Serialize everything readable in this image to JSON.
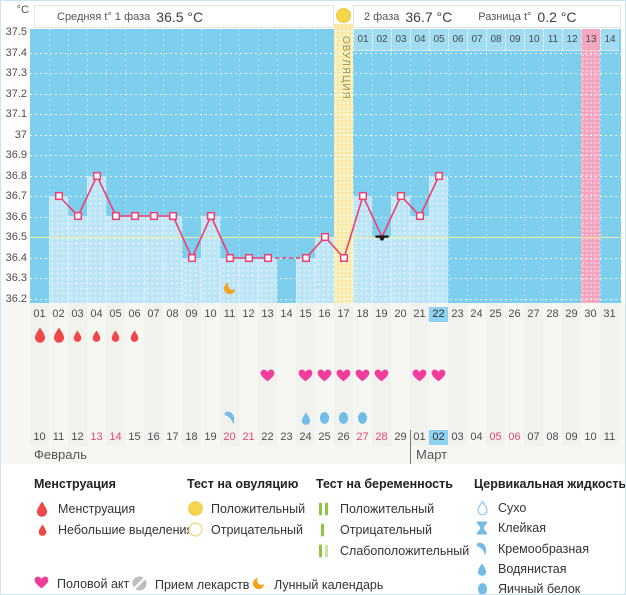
{
  "colors": {
    "chart_bg": "#7ecfee",
    "bar": "#bce6f6",
    "line_pink": "#ee3e72",
    "coverline": "#eeee9e",
    "ovulation_column": "#f8eaa6",
    "expected_period_column": "#f2a3bd",
    "today_highlight": "#8dd2f1",
    "menstruation_red": "#f04848",
    "intercourse_pink": "#f23c9b",
    "cervical_blue": "#72bce8",
    "test_green": "#8cc63e",
    "test_green_pale": "#cde3a4",
    "ovulation_yellow": "#f6d44c",
    "moon_orange": "#f6a21d",
    "pill_gray": "#bdbdbd",
    "weekend_red": "#e8486e"
  },
  "header": {
    "unit": "°C",
    "phase1_label": "Средняя t° 1 фаза",
    "phase1_value": "36.5 °C",
    "phase2_label": "2 фаза",
    "phase2_value": "36.7 °C",
    "diff_label": "Разница t°",
    "diff_value": "0.2 °C"
  },
  "chart_data": {
    "type": "line",
    "ylabel": "°C",
    "ylim": [
      36.2,
      37.5
    ],
    "ytick_labels": [
      "37.5",
      "37.4",
      "37.3",
      "37.2",
      "37.1",
      "37",
      "36.9",
      "36.8",
      "36.7",
      "36.6",
      "36.5",
      "36.4",
      "36.3",
      "36.2"
    ],
    "coverline": 36.5,
    "cycle_days": [
      "01",
      "02",
      "03",
      "04",
      "05",
      "06",
      "07",
      "08",
      "09",
      "10",
      "11",
      "12",
      "13",
      "14",
      "15",
      "16",
      "17",
      "18",
      "19",
      "20",
      "21",
      "22",
      "23",
      "24",
      "25",
      "26",
      "27",
      "28",
      "29",
      "30",
      "31"
    ],
    "temps": [
      null,
      36.7,
      36.6,
      36.8,
      36.6,
      36.6,
      36.6,
      36.6,
      36.4,
      36.6,
      36.4,
      36.4,
      36.4,
      null,
      36.4,
      36.5,
      36.4,
      36.7,
      36.5,
      36.7,
      36.6,
      36.8,
      null,
      null,
      null,
      null,
      null,
      null,
      null,
      null,
      null
    ],
    "missing_measurement_days": [
      1,
      14
    ],
    "ovulation_day": 17,
    "ovulation_column_label": "ОВУЛЯЦИЯ",
    "expected_period_day": 30,
    "current_cycle_day": 22,
    "phase2_days": [
      "01",
      "02",
      "03",
      "04",
      "05",
      "06",
      "07",
      "08",
      "09",
      "10",
      "11",
      "12",
      "13",
      "14"
    ],
    "phase2_expected_period_label": "13",
    "moon_day": 11,
    "dip_marker": {
      "day": 19,
      "temp": 36.5
    }
  },
  "events": {
    "menstruation_heavy_days": [
      1,
      2
    ],
    "menstruation_light_days": [
      3,
      4,
      5,
      6
    ],
    "intercourse_days": [
      13,
      15,
      16,
      17,
      18,
      19,
      21,
      22
    ],
    "cervical_fluid": [
      {
        "day": 11,
        "type": "creamy"
      },
      {
        "day": 15,
        "type": "watery"
      },
      {
        "day": 16,
        "type": "eggwhite"
      },
      {
        "day": 17,
        "type": "eggwhite"
      },
      {
        "day": 18,
        "type": "eggwhite"
      }
    ]
  },
  "calendar": {
    "dates": [
      {
        "label": "10"
      },
      {
        "label": "11"
      },
      {
        "label": "12"
      },
      {
        "label": "13",
        "red": true
      },
      {
        "label": "14",
        "red": true
      },
      {
        "label": "15"
      },
      {
        "label": "16"
      },
      {
        "label": "17"
      },
      {
        "label": "18"
      },
      {
        "label": "19"
      },
      {
        "label": "20",
        "red": true
      },
      {
        "label": "21",
        "red": true
      },
      {
        "label": "22"
      },
      {
        "label": "23"
      },
      {
        "label": "24"
      },
      {
        "label": "25"
      },
      {
        "label": "26"
      },
      {
        "label": "27",
        "red": true
      },
      {
        "label": "28",
        "red": true
      },
      {
        "label": "29"
      },
      {
        "label": "01"
      },
      {
        "label": "02",
        "today": true
      },
      {
        "label": "03"
      },
      {
        "label": "04"
      },
      {
        "label": "05",
        "red": true
      },
      {
        "label": "06",
        "red": true
      },
      {
        "label": "07"
      },
      {
        "label": "08"
      },
      {
        "label": "09"
      },
      {
        "label": "10"
      },
      {
        "label": "11"
      }
    ],
    "months": [
      {
        "label": "Февраль",
        "start_day": 1
      },
      {
        "label": "Март",
        "start_day": 21
      }
    ]
  },
  "legend": {
    "sections": [
      {
        "title": "Менструация",
        "items": [
          {
            "icon": "drop-large",
            "label": "Менструация"
          },
          {
            "icon": "drop-small",
            "label": "Небольшие выделения"
          }
        ]
      },
      {
        "title": "Тест на овуляцию",
        "items": [
          {
            "icon": "circle-filled",
            "label": "Положительный"
          },
          {
            "icon": "circle-outline",
            "label": "Отрицательный"
          }
        ]
      },
      {
        "title": "Тест на беременность",
        "items": [
          {
            "icon": "test-positive",
            "label": "Положительный"
          },
          {
            "icon": "test-negative",
            "label": "Отрицательный"
          },
          {
            "icon": "test-weak",
            "label": "Слабоположительный"
          }
        ]
      },
      {
        "title": "Цервикальная жидкость",
        "items": [
          {
            "icon": "drop-outline",
            "label": "Сухо"
          },
          {
            "icon": "sticky",
            "label": "Клейкая"
          },
          {
            "icon": "creamy",
            "label": "Кремообразная"
          },
          {
            "icon": "watery",
            "label": "Водянистая"
          },
          {
            "icon": "eggwhite",
            "label": "Яичный белок"
          }
        ]
      }
    ],
    "extra": [
      {
        "icon": "heart",
        "label": "Половой акт"
      },
      {
        "icon": "pill",
        "label": "Прием лекарств"
      },
      {
        "icon": "moon",
        "label": "Лунный календарь"
      }
    ]
  }
}
